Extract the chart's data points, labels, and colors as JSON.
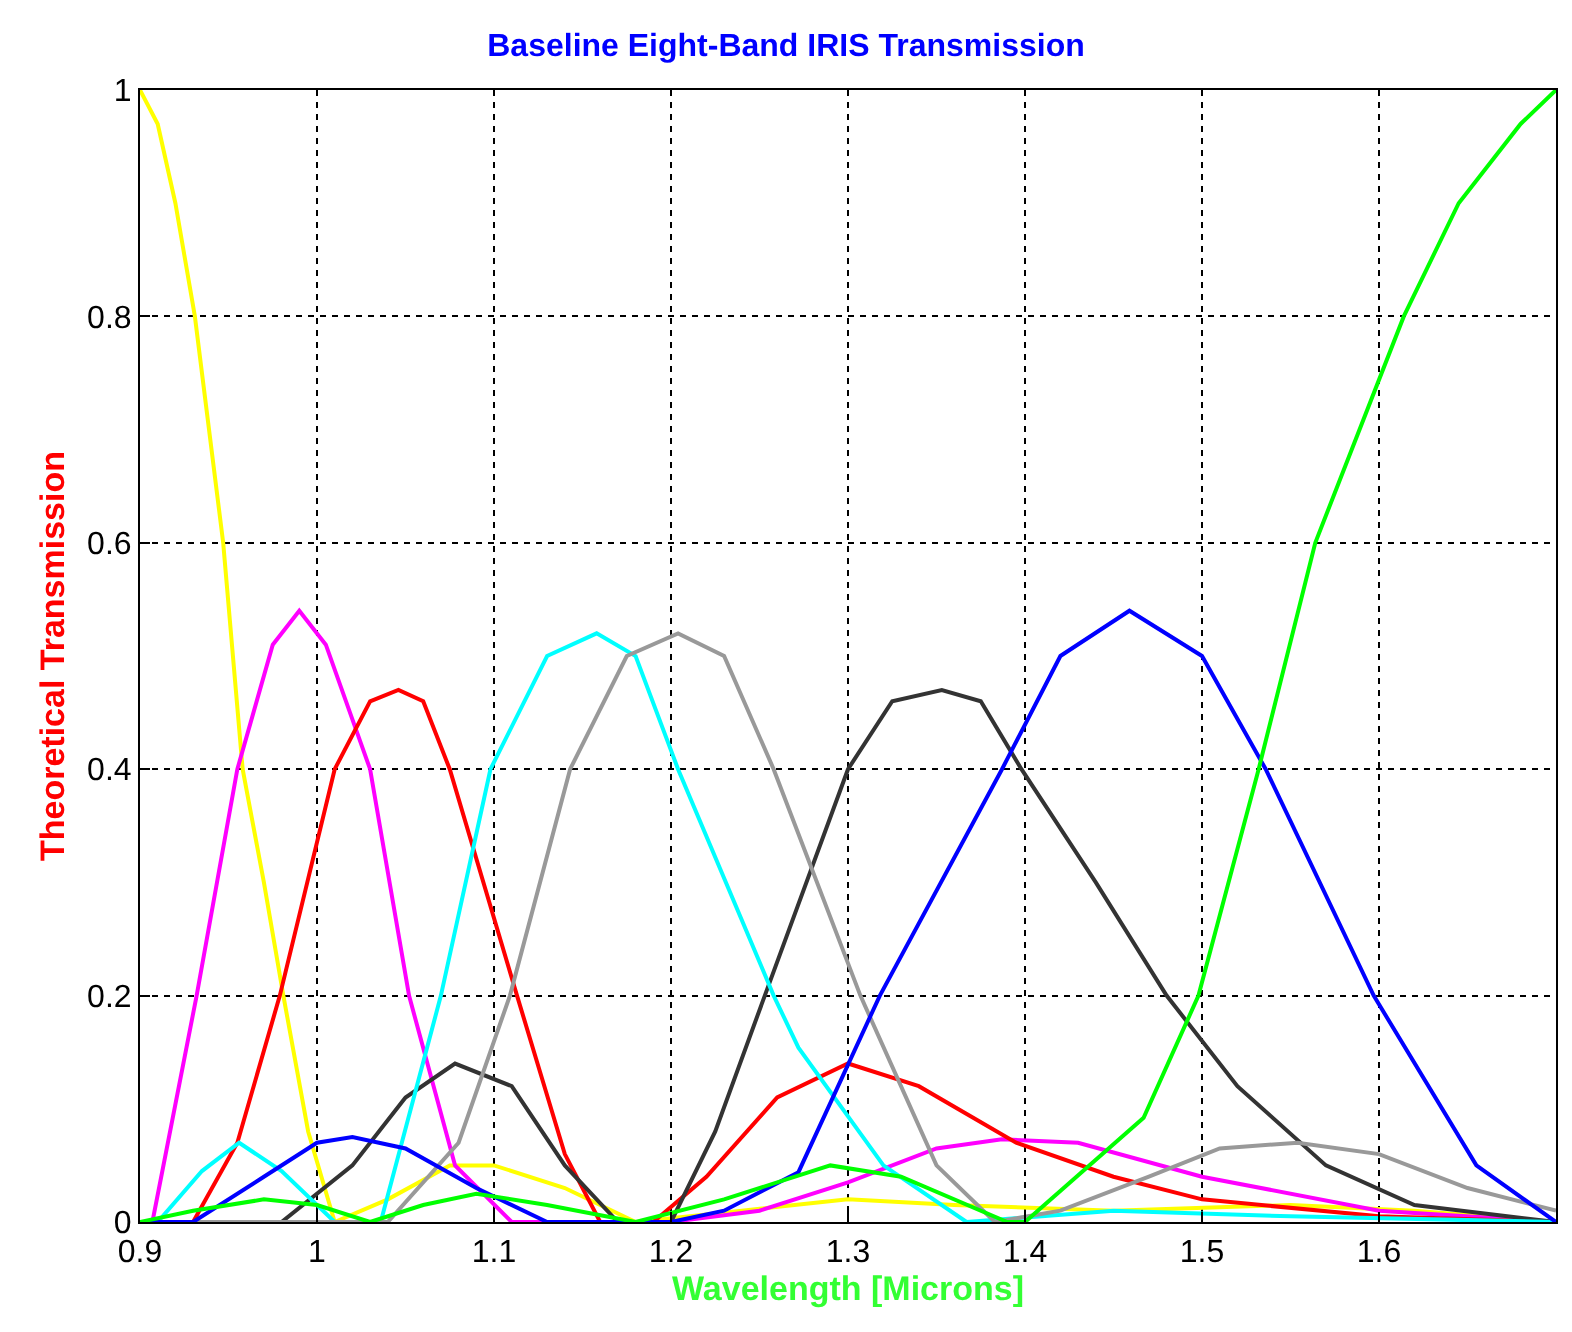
{
  "chart_data": {
    "type": "line",
    "title": "Baseline Eight-Band IRIS Transmission",
    "xlabel": "Wavelength [Microns]",
    "ylabel": "Theoretical Transmission",
    "xlim": [
      0.9,
      1.7
    ],
    "xticks": [
      0.9,
      1,
      1.1,
      1.2,
      1.3,
      1.4,
      1.5,
      1.6
    ],
    "ylim": [
      0,
      1
    ],
    "yticks": [
      0,
      0.2,
      0.4,
      0.6,
      0.8,
      1
    ],
    "grid": true,
    "line_style": "solid",
    "marker": "none",
    "series": [
      {
        "color": "#ffff00",
        "x": [
          0.9,
          0.91,
          0.92,
          0.931,
          0.947,
          0.958,
          0.97,
          0.981,
          0.995,
          1.01,
          1.04,
          1.075,
          1.1,
          1.14,
          1.18,
          1.24,
          1.3,
          1.36,
          1.45,
          1.55,
          1.62,
          1.7
        ],
        "values": [
          1,
          0.97,
          0.9,
          0.8,
          0.6,
          0.4,
          0.3,
          0.2,
          0.08,
          0,
          0.02,
          0.05,
          0.05,
          0.03,
          0,
          0.01,
          0.02,
          0.015,
          0.01,
          0.015,
          0.01,
          0
        ]
      },
      {
        "color": "#ff00ff",
        "x": [
          0.9,
          0.907,
          0.932,
          0.955,
          0.975,
          0.99,
          1.005,
          1.03,
          1.052,
          1.078,
          1.11,
          1.2,
          1.25,
          1.3,
          1.35,
          1.387,
          1.43,
          1.5,
          1.6,
          1.7
        ],
        "values": [
          0,
          0,
          0.2,
          0.4,
          0.51,
          0.54,
          0.51,
          0.4,
          0.2,
          0.05,
          0,
          0,
          0.01,
          0.035,
          0.065,
          0.073,
          0.07,
          0.04,
          0.01,
          0
        ]
      },
      {
        "color": "#ff0000",
        "x": [
          0.9,
          0.93,
          0.955,
          0.979,
          1.01,
          1.03,
          1.046,
          1.06,
          1.075,
          1.113,
          1.14,
          1.16,
          1.19,
          1.22,
          1.26,
          1.3,
          1.34,
          1.395,
          1.45,
          1.5,
          1.6,
          1.7
        ],
        "values": [
          0,
          0,
          0.07,
          0.2,
          0.4,
          0.46,
          0.47,
          0.46,
          0.4,
          0.2,
          0.06,
          0,
          0,
          0.04,
          0.11,
          0.14,
          0.12,
          0.07,
          0.04,
          0.02,
          0.005,
          0
        ]
      },
      {
        "color": "#333333",
        "x": [
          0.9,
          0.98,
          1.02,
          1.05,
          1.078,
          1.11,
          1.14,
          1.17,
          1.2,
          1.225,
          1.253,
          1.3,
          1.325,
          1.353,
          1.375,
          1.398,
          1.44,
          1.48,
          1.52,
          1.57,
          1.62,
          1.7
        ],
        "values": [
          0,
          0,
          0.05,
          0.11,
          0.14,
          0.12,
          0.05,
          0,
          0,
          0.08,
          0.2,
          0.4,
          0.46,
          0.47,
          0.46,
          0.4,
          0.3,
          0.2,
          0.12,
          0.05,
          0.015,
          0
        ]
      },
      {
        "color": "#00ffff",
        "x": [
          0.9,
          0.91,
          0.935,
          0.956,
          0.98,
          1.01,
          1.036,
          1.07,
          1.098,
          1.13,
          1.158,
          1.18,
          1.204,
          1.258,
          1.272,
          1.32,
          1.367,
          1.45,
          1.55,
          1.7
        ],
        "values": [
          0,
          0,
          0.045,
          0.07,
          0.045,
          0,
          0,
          0.2,
          0.4,
          0.5,
          0.52,
          0.5,
          0.4,
          0.2,
          0.154,
          0.05,
          0,
          0.01,
          0.005,
          0
        ]
      },
      {
        "color": "#999999",
        "x": [
          0.9,
          1.04,
          1.08,
          1.109,
          1.143,
          1.175,
          1.204,
          1.23,
          1.258,
          1.307,
          1.35,
          1.383,
          1.42,
          1.47,
          1.51,
          1.554,
          1.6,
          1.65,
          1.7
        ],
        "values": [
          0,
          0,
          0.07,
          0.2,
          0.4,
          0.5,
          0.52,
          0.5,
          0.4,
          0.2,
          0.05,
          0,
          0.01,
          0.04,
          0.065,
          0.07,
          0.06,
          0.03,
          0.01
        ]
      },
      {
        "color": "#0000ff",
        "x": [
          0.9,
          0.93,
          0.97,
          1.0,
          1.02,
          1.05,
          1.09,
          1.13,
          1.2,
          1.23,
          1.272,
          1.318,
          1.387,
          1.42,
          1.459,
          1.5,
          1.536,
          1.597,
          1.655,
          1.7
        ],
        "values": [
          0,
          0,
          0.04,
          0.07,
          0.075,
          0.065,
          0.03,
          0,
          0,
          0.01,
          0.044,
          0.2,
          0.4,
          0.5,
          0.54,
          0.5,
          0.4,
          0.2,
          0.05,
          0
        ]
      },
      {
        "color": "#00ff00",
        "x": [
          0.9,
          0.93,
          0.97,
          1.0,
          1.03,
          1.06,
          1.09,
          1.13,
          1.18,
          1.23,
          1.29,
          1.33,
          1.39,
          1.4,
          1.467,
          1.498,
          1.532,
          1.564,
          1.614,
          1.645,
          1.68,
          1.7
        ],
        "values": [
          0,
          0.01,
          0.02,
          0.015,
          0,
          0.015,
          0.025,
          0.015,
          0,
          0.02,
          0.05,
          0.04,
          0,
          0,
          0.092,
          0.2,
          0.4,
          0.6,
          0.8,
          0.9,
          0.97,
          1
        ]
      }
    ]
  }
}
